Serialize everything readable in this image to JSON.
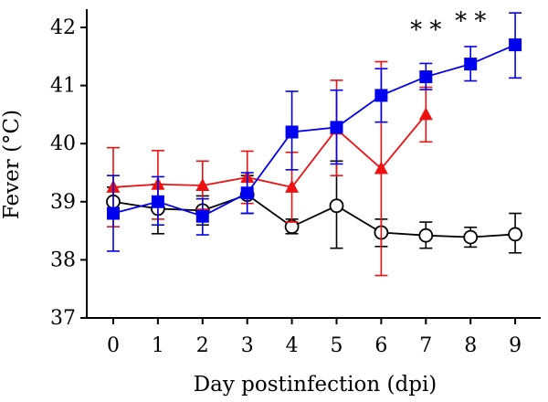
{
  "chart_data": {
    "type": "line",
    "xlabel": "Day postinfection (dpi)",
    "ylabel": "Fever (°C)",
    "xlim": [
      -0.6,
      9.5
    ],
    "ylim": [
      37,
      42.2
    ],
    "x_ticks": [
      "0",
      "1",
      "2",
      "3",
      "4",
      "5",
      "6",
      "7",
      "8",
      "9"
    ],
    "y_ticks": [
      "37",
      "38",
      "39",
      "40",
      "41",
      "42"
    ],
    "grid": false,
    "legend": "none",
    "series": [
      {
        "color": "#000000",
        "marker": "circle-open",
        "x": [
          0,
          1,
          2,
          3,
          4,
          5,
          6,
          7,
          8,
          9
        ],
        "y": [
          39.0,
          38.88,
          38.85,
          39.12,
          38.57,
          38.93,
          38.47,
          38.42,
          38.39,
          38.44
        ],
        "err_low": [
          38.75,
          38.45,
          38.6,
          38.8,
          38.45,
          38.2,
          38.23,
          38.2,
          38.22,
          38.12
        ],
        "err_high": [
          39.25,
          39.3,
          39.1,
          39.45,
          38.7,
          39.7,
          38.7,
          38.65,
          38.56,
          38.8
        ]
      },
      {
        "color": "#0000ee",
        "marker": "square",
        "x": [
          0,
          1,
          2,
          3,
          4,
          5,
          6,
          7,
          8,
          9
        ],
        "y": [
          38.8,
          39.0,
          38.75,
          39.15,
          40.2,
          40.28,
          40.83,
          41.15,
          41.37,
          41.7
        ],
        "err_low": [
          38.15,
          38.6,
          38.43,
          38.8,
          39.55,
          39.65,
          40.37,
          40.93,
          41.08,
          41.13
        ],
        "err_high": [
          39.45,
          39.43,
          39.05,
          39.5,
          40.9,
          40.92,
          41.29,
          41.38,
          41.67,
          42.25
        ]
      },
      {
        "color": "#ee1111",
        "marker": "triangle",
        "x": [
          0,
          1,
          2,
          3,
          4,
          5,
          6,
          7
        ],
        "y": [
          39.25,
          39.3,
          39.28,
          39.42,
          39.25,
          40.25,
          39.57,
          40.5
        ],
        "err_low": [
          38.57,
          38.7,
          38.87,
          38.97,
          38.65,
          39.45,
          37.73,
          40.03
        ],
        "err_high": [
          39.93,
          39.88,
          39.7,
          39.87,
          39.85,
          41.09,
          41.41,
          40.97
        ]
      }
    ],
    "annotations": [
      {
        "text": "* *",
        "x": 7,
        "y": 42.05
      },
      {
        "text": "* *",
        "x": 8,
        "y": 42.2
      }
    ]
  }
}
